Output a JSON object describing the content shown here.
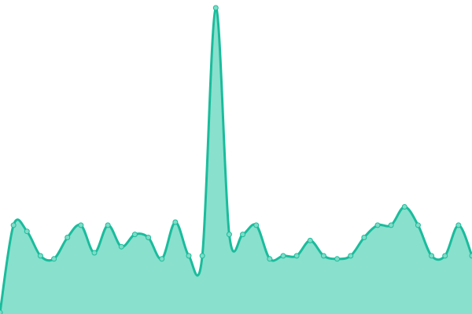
{
  "chart_data": {
    "type": "area",
    "title": "",
    "xlabel": "",
    "ylabel": "",
    "ylim": [
      0,
      100
    ],
    "grid": false,
    "legend": "none",
    "smooth": true,
    "x": [
      0,
      1,
      2,
      3,
      4,
      5,
      6,
      7,
      8,
      9,
      10,
      11,
      12,
      13,
      14,
      15,
      16,
      17,
      18,
      19,
      20,
      21,
      22,
      23,
      24,
      25,
      26,
      27,
      28,
      29,
      30,
      31,
      32,
      33,
      34,
      35
    ],
    "series": [
      {
        "values": [
          0.5,
          29,
          27,
          19,
          18,
          25,
          29,
          20,
          29,
          22,
          26,
          25,
          18,
          30,
          19,
          19,
          100,
          26,
          26,
          29,
          18,
          19,
          19,
          24,
          19,
          18,
          19,
          25,
          29,
          29,
          35,
          29,
          19,
          19,
          29,
          19
        ],
        "line_color": "#1abc9c",
        "fill_color": "#88e0cd",
        "marker_fill": "#7fdcc7"
      }
    ]
  }
}
